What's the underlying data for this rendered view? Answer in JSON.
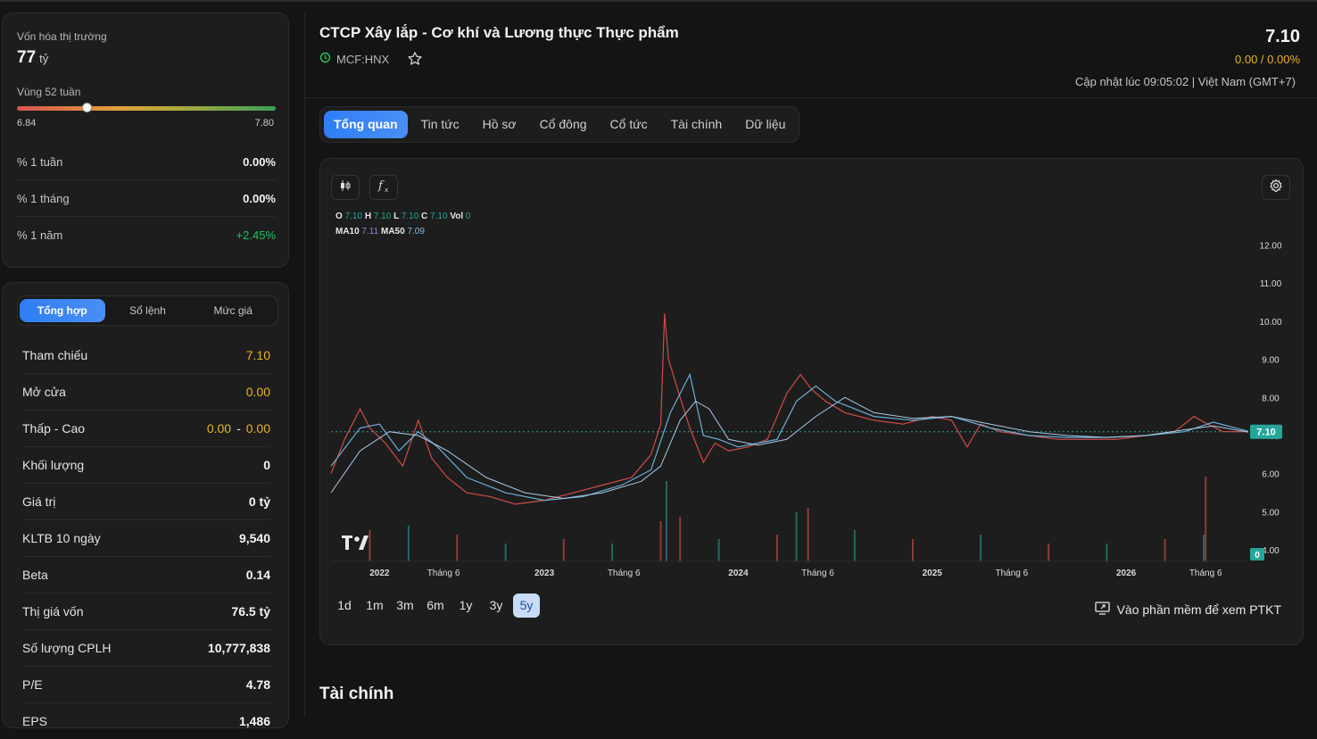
{
  "market_card": {
    "cap_label": "Vốn hóa thị trường",
    "cap_value": "77",
    "cap_unit": "tỷ",
    "range_label": "Vùng 52 tuần",
    "range_low": "6.84",
    "range_high": "7.80",
    "range_position": 0.27,
    "rows": [
      {
        "label": "% 1 tuần",
        "value": "0.00%"
      },
      {
        "label": "% 1 tháng",
        "value": "0.00%"
      },
      {
        "label": "% 1 năm",
        "value": "+2.45%"
      }
    ]
  },
  "summary_card": {
    "tabs": [
      "Tổng hợp",
      "Sổ lệnh",
      "Mức giá"
    ],
    "rows": [
      {
        "label": "Tham chiếu",
        "value": "7.10"
      },
      {
        "label": "Mở cửa",
        "value": "0.00"
      },
      {
        "label": "Thấp - Cao",
        "low": "0.00",
        "sep": "-",
        "high": "0.00"
      },
      {
        "label": "Khối lượng",
        "value": "0"
      },
      {
        "label": "Giá trị",
        "value": "0 tỷ"
      },
      {
        "label": "KLTB 10 ngày",
        "value": "9,540"
      },
      {
        "label": "Beta",
        "value": "0.14"
      },
      {
        "label": "Thị giá vốn",
        "value": "76.5 tỷ"
      },
      {
        "label": "Số lượng CPLH",
        "value": "10,777,838"
      },
      {
        "label": "P/E",
        "value": "4.78"
      },
      {
        "label": "EPS",
        "value": "1,486"
      }
    ]
  },
  "header": {
    "title": "CTCP Xây lắp - Cơ khí và Lương thực Thực phẩm",
    "ticker": "MCF:HNX",
    "price": "7.10",
    "change": "0.00 / 0.00%",
    "updated": "Cập nhật lúc 09:05:02 | Việt Nam (GMT+7)"
  },
  "tabs": [
    "Tổng quan",
    "Tin tức",
    "Hồ sơ",
    "Cổ đông",
    "Cổ tức",
    "Tài chính",
    "Dữ liệu"
  ],
  "chart_legend": {
    "o_label": "O",
    "o": "7.10",
    "h_label": "H",
    "h": "7.10",
    "l_label": "L",
    "l": "7.10",
    "c_label": "C",
    "c": "7.10",
    "vol_label": "Vol",
    "vol": "0",
    "ma10_label": "MA10",
    "ma10": "7.11",
    "ma50_label": "MA50",
    "ma50": "7.09"
  },
  "ranges": [
    "1d",
    "1m",
    "3m",
    "6m",
    "1y",
    "3y",
    "5y"
  ],
  "ptkt_label": "Vào phần mềm để xem PTKT",
  "section_title": "Tài chính",
  "colors": {
    "accent": "#2f7ef5",
    "up": "#26a69a",
    "down": "#ef5350",
    "reference": "#e8b322",
    "positive": "#22c55e"
  },
  "chart_data": {
    "type": "line",
    "title": "",
    "y_ticks": [
      "12.00",
      "11.00",
      "10.00",
      "9.00",
      "8.00",
      "7.00",
      "6.00",
      "5.00",
      "4.00"
    ],
    "ylim": [
      3.7,
      12.5
    ],
    "x_ticks": [
      "2022",
      "Tháng 6",
      "2023",
      "Tháng 6",
      "2024",
      "Tháng 6",
      "2025",
      "Tháng 6",
      "2026",
      "Tháng 6"
    ],
    "x_tick_positions": [
      0.15,
      0.48,
      1.0,
      1.41,
      2.0,
      2.41,
      3.0,
      3.41,
      4.0,
      4.41
    ],
    "xlim": [
      -0.1,
      4.63
    ],
    "last_price_label": "7.10",
    "last_volume_label": "0",
    "price": {
      "t": [
        -0.1,
        -0.03,
        0.05,
        0.1,
        0.18,
        0.27,
        0.35,
        0.42,
        0.5,
        0.6,
        0.72,
        0.85,
        1.0,
        1.15,
        1.3,
        1.45,
        1.55,
        1.6,
        1.62,
        1.64,
        1.7,
        1.75,
        1.82,
        1.88,
        1.95,
        2.05,
        2.15,
        2.25,
        2.32,
        2.38,
        2.45,
        2.55,
        2.7,
        2.85,
        3.0,
        3.1,
        3.18,
        3.25,
        3.35,
        3.5,
        3.65,
        3.8,
        3.95,
        4.1,
        4.25,
        4.35,
        4.42,
        4.5,
        4.63
      ],
      "close": [
        6.0,
        6.9,
        7.7,
        7.2,
        6.8,
        6.2,
        7.4,
        6.4,
        5.9,
        5.5,
        5.4,
        5.2,
        5.3,
        5.5,
        5.7,
        5.9,
        6.5,
        7.3,
        10.2,
        9.0,
        8.0,
        7.2,
        6.3,
        6.8,
        6.6,
        6.7,
        6.9,
        8.1,
        8.6,
        8.2,
        7.9,
        7.6,
        7.4,
        7.3,
        7.5,
        7.4,
        6.7,
        7.3,
        7.1,
        7.0,
        6.9,
        6.9,
        6.9,
        7.0,
        7.1,
        7.5,
        7.3,
        7.1,
        7.1
      ]
    },
    "ma10": {
      "t": [
        -0.1,
        0.05,
        0.15,
        0.25,
        0.35,
        0.45,
        0.6,
        0.8,
        1.0,
        1.2,
        1.4,
        1.55,
        1.65,
        1.75,
        1.82,
        1.9,
        2.0,
        2.1,
        2.2,
        2.3,
        2.4,
        2.5,
        2.7,
        2.9,
        3.1,
        3.3,
        3.5,
        3.7,
        3.9,
        4.1,
        4.3,
        4.45,
        4.63
      ],
      "values": [
        6.2,
        7.2,
        7.3,
        6.6,
        7.1,
        6.7,
        5.9,
        5.5,
        5.3,
        5.4,
        5.7,
        6.1,
        7.6,
        8.6,
        7.0,
        6.9,
        6.7,
        6.8,
        6.9,
        7.9,
        8.3,
        7.9,
        7.5,
        7.4,
        7.5,
        7.2,
        7.0,
        6.95,
        6.95,
        7.0,
        7.1,
        7.35,
        7.11
      ]
    },
    "ma50": {
      "t": [
        -0.1,
        0.05,
        0.2,
        0.35,
        0.5,
        0.7,
        0.9,
        1.1,
        1.3,
        1.5,
        1.6,
        1.7,
        1.78,
        1.85,
        1.95,
        2.1,
        2.25,
        2.4,
        2.55,
        2.7,
        2.9,
        3.1,
        3.3,
        3.5,
        3.7,
        3.9,
        4.1,
        4.3,
        4.45,
        4.63
      ],
      "values": [
        5.5,
        6.6,
        7.1,
        7.0,
        6.6,
        5.9,
        5.5,
        5.35,
        5.5,
        5.8,
        6.2,
        7.4,
        7.9,
        7.7,
        6.9,
        6.75,
        6.9,
        7.5,
        8.0,
        7.6,
        7.45,
        7.5,
        7.3,
        7.1,
        7.0,
        6.95,
        7.0,
        7.15,
        7.25,
        7.09
      ]
    },
    "volume_peaks": {
      "t": [
        0.1,
        0.3,
        0.55,
        0.8,
        1.1,
        1.35,
        1.6,
        1.63,
        1.7,
        1.9,
        2.2,
        2.3,
        2.36,
        2.6,
        2.9,
        3.25,
        3.6,
        3.9,
        4.2,
        4.4,
        4.41
      ],
      "values": [
        35,
        40,
        30,
        20,
        25,
        20,
        45,
        90,
        50,
        25,
        30,
        55,
        60,
        35,
        25,
        30,
        20,
        20,
        25,
        30,
        95
      ]
    }
  }
}
